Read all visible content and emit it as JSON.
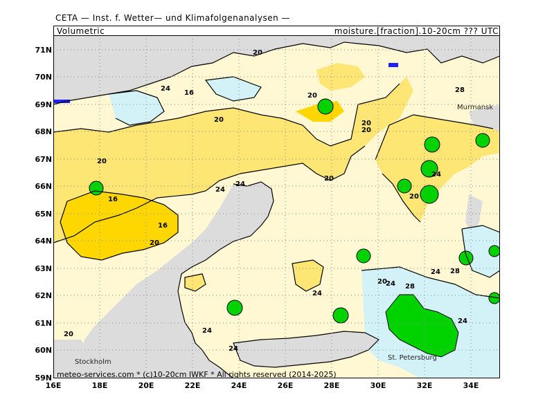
{
  "header": {
    "title": "CETA — Inst. f. Wetter— und Klimafolgenanalysen —",
    "left": "Volumetric",
    "right": "moisture.[fraction].10-20cm ??? UTC"
  },
  "map": {
    "lat_labels": [
      "71N",
      "70N",
      "69N",
      "68N",
      "67N",
      "66N",
      "65N",
      "64N",
      "63N",
      "62N",
      "61N",
      "60N",
      "59N"
    ],
    "lon_labels": [
      "16E",
      "18E",
      "20E",
      "22E",
      "24E",
      "26E",
      "28E",
      "30E",
      "32E",
      "34E"
    ],
    "cities": {
      "murmansk": "Murmansk",
      "stockholm": "Stockholm",
      "st_petersburg": "St. Petersburg"
    },
    "contour_labels": [
      "20",
      "24",
      "16",
      "20",
      "24",
      "20",
      "20",
      "20",
      "16",
      "16",
      "20",
      "24",
      "20",
      "20",
      "24",
      "20",
      "24",
      "24",
      "28",
      "24",
      "28",
      "24",
      "20",
      "24",
      "24",
      "28",
      "20"
    ],
    "colors": {
      "land_missing": "#dcdcdc",
      "cls_16": "#ffd700",
      "cls_20": "#fde674",
      "cls_24": "#fff8d2",
      "cls_28": "#d2f2f8",
      "cls_high": "#00d200",
      "water_deep": "#2020ff"
    }
  },
  "footer": "meteo-services.com * (c)10-20cm IWKF * All rights reserved (2014-2025)"
}
